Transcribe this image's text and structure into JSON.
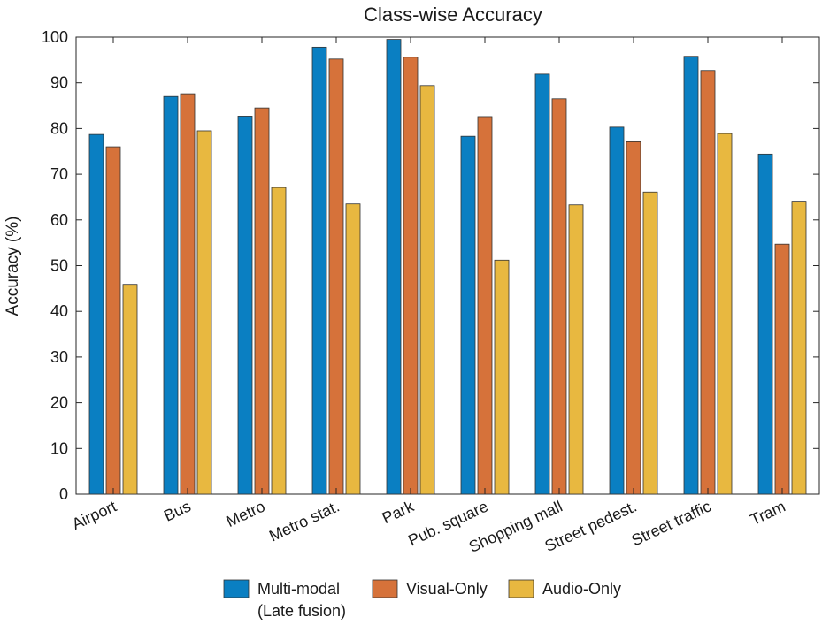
{
  "chart_data": {
    "type": "bar",
    "title": "Class-wise Accuracy",
    "xlabel": "",
    "ylabel": "Accuracy (%)",
    "ylim": [
      0,
      100
    ],
    "yticks": [
      0,
      10,
      20,
      30,
      40,
      50,
      60,
      70,
      80,
      90,
      100
    ],
    "grid": false,
    "legend_position": "bottom",
    "categories": [
      "Airport",
      "Bus",
      "Metro",
      "Metro stat.",
      "Park",
      "Pub. square",
      "Shopping mall",
      "Street pedest.",
      "Street traffic",
      "Tram"
    ],
    "series": [
      {
        "name": "Multi-modal\n(Late fusion)",
        "legend_lines": [
          "Multi-modal",
          "(Late fusion)"
        ],
        "color": "#0a7fc2",
        "values": [
          78.7,
          87.0,
          82.7,
          97.8,
          99.5,
          78.3,
          91.9,
          80.3,
          95.8,
          74.4
        ]
      },
      {
        "name": "Visual-Only",
        "legend_lines": [
          "Visual-Only"
        ],
        "color": "#d6723a",
        "values": [
          76.0,
          87.6,
          84.5,
          95.2,
          95.6,
          82.6,
          86.5,
          77.1,
          92.7,
          54.7
        ]
      },
      {
        "name": "Audio-Only",
        "legend_lines": [
          "Audio-Only"
        ],
        "color": "#e8b840",
        "values": [
          45.9,
          79.5,
          67.1,
          63.5,
          89.4,
          51.2,
          63.3,
          66.1,
          78.9,
          64.1
        ]
      }
    ]
  }
}
